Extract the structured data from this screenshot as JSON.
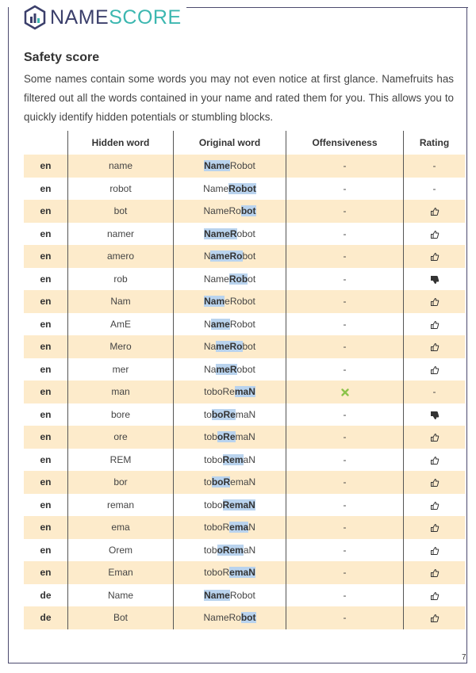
{
  "header": {
    "logo_parts": [
      "NAME",
      "SCORE"
    ]
  },
  "section": {
    "title": "Safety score",
    "text": "Some names contain some words you may not even notice at first glance. Namefruits has filtered out all the words contained in your name and rated them for you. This allows you to quickly identify hidden potentials or stumbling blocks."
  },
  "table": {
    "columns": [
      "Hidden word",
      "Original word",
      "Offensiveness",
      "Rating"
    ],
    "rows": [
      {
        "lang": "en",
        "word": "name",
        "original": [
          {
            "text": "Name",
            "hl": true
          },
          {
            "text": "Robot"
          }
        ],
        "offensiveness": "-",
        "rating": "-"
      },
      {
        "lang": "en",
        "word": "robot",
        "original": [
          {
            "text": "Name"
          },
          {
            "text": "Robot",
            "hl": true
          }
        ],
        "offensiveness": "-",
        "rating": "-"
      },
      {
        "lang": "en",
        "word": "bot",
        "original": [
          {
            "text": "NameRo"
          },
          {
            "text": "bot",
            "hl": true
          }
        ],
        "offensiveness": "-",
        "rating_icon": "up"
      },
      {
        "lang": "en",
        "word": "namer",
        "original": [
          {
            "text": "NameR",
            "hl": true
          },
          {
            "text": "obot"
          }
        ],
        "offensiveness": "-",
        "rating_icon": "up"
      },
      {
        "lang": "en",
        "word": "amero",
        "original": [
          {
            "text": "N"
          },
          {
            "text": "ameRo",
            "hl": true
          },
          {
            "text": "bot"
          }
        ],
        "offensiveness": "-",
        "rating_icon": "up"
      },
      {
        "lang": "en",
        "word": "rob",
        "original": [
          {
            "text": "Name"
          },
          {
            "text": "Rob",
            "hl": true
          },
          {
            "text": "ot"
          }
        ],
        "offensiveness": "-",
        "rating_icon": "down"
      },
      {
        "lang": "en",
        "word": "Nam",
        "original": [
          {
            "text": "Nam",
            "hl": true
          },
          {
            "text": "eRobot"
          }
        ],
        "offensiveness": "-",
        "rating_icon": "up"
      },
      {
        "lang": "en",
        "word": "AmE",
        "original": [
          {
            "text": "N"
          },
          {
            "text": "ame",
            "hl": true
          },
          {
            "text": "Robot"
          }
        ],
        "offensiveness": "-",
        "rating_icon": "up"
      },
      {
        "lang": "en",
        "word": "Mero",
        "original": [
          {
            "text": "Na"
          },
          {
            "text": "meRo",
            "hl": true
          },
          {
            "text": "bot"
          }
        ],
        "offensiveness": "-",
        "rating_icon": "up"
      },
      {
        "lang": "en",
        "word": "mer",
        "original": [
          {
            "text": "Na"
          },
          {
            "text": "meR",
            "hl": true
          },
          {
            "text": "obot"
          }
        ],
        "offensiveness": "-",
        "rating_icon": "up"
      },
      {
        "lang": "en",
        "word": "man",
        "original": [
          {
            "text": "toboRe"
          },
          {
            "text": "maN",
            "hl": true
          }
        ],
        "offensiveness_icon": "cross",
        "rating": "-"
      },
      {
        "lang": "en",
        "word": "bore",
        "original": [
          {
            "text": "to"
          },
          {
            "text": "boRe",
            "hl": true
          },
          {
            "text": "maN"
          }
        ],
        "offensiveness": "-",
        "rating_icon": "down"
      },
      {
        "lang": "en",
        "word": "ore",
        "original": [
          {
            "text": "tob"
          },
          {
            "text": "oRe",
            "hl": true
          },
          {
            "text": "maN"
          }
        ],
        "offensiveness": "-",
        "rating_icon": "up"
      },
      {
        "lang": "en",
        "word": "REM",
        "original": [
          {
            "text": "tobo"
          },
          {
            "text": "Rem",
            "hl": true
          },
          {
            "text": "aN"
          }
        ],
        "offensiveness": "-",
        "rating_icon": "up"
      },
      {
        "lang": "en",
        "word": "bor",
        "original": [
          {
            "text": "to"
          },
          {
            "text": "boR",
            "hl": true
          },
          {
            "text": "emaN"
          }
        ],
        "offensiveness": "-",
        "rating_icon": "up"
      },
      {
        "lang": "en",
        "word": "reman",
        "original": [
          {
            "text": "tobo"
          },
          {
            "text": "RemaN",
            "hl": true
          }
        ],
        "offensiveness": "-",
        "rating_icon": "up"
      },
      {
        "lang": "en",
        "word": "ema",
        "original": [
          {
            "text": "toboR"
          },
          {
            "text": "ema",
            "hl": true
          },
          {
            "text": "N"
          }
        ],
        "offensiveness": "-",
        "rating_icon": "up"
      },
      {
        "lang": "en",
        "word": "Orem",
        "original": [
          {
            "text": "tob"
          },
          {
            "text": "oRem",
            "hl": true
          },
          {
            "text": "aN"
          }
        ],
        "offensiveness": "-",
        "rating_icon": "up"
      },
      {
        "lang": "en",
        "word": "Eman",
        "original": [
          {
            "text": "toboR"
          },
          {
            "text": "emaN",
            "hl": true
          }
        ],
        "offensiveness": "-",
        "rating_icon": "up"
      },
      {
        "lang": "de",
        "word": "Name",
        "original": [
          {
            "text": "Name",
            "hl": true
          },
          {
            "text": "Robot"
          }
        ],
        "offensiveness": "-",
        "rating_icon": "up"
      },
      {
        "lang": "de",
        "word": "Bot",
        "original": [
          {
            "text": "NameRo"
          },
          {
            "text": "bot",
            "hl": true
          }
        ],
        "offensiveness": "-",
        "rating_icon": "up"
      }
    ]
  },
  "footer": {
    "page": "7"
  }
}
